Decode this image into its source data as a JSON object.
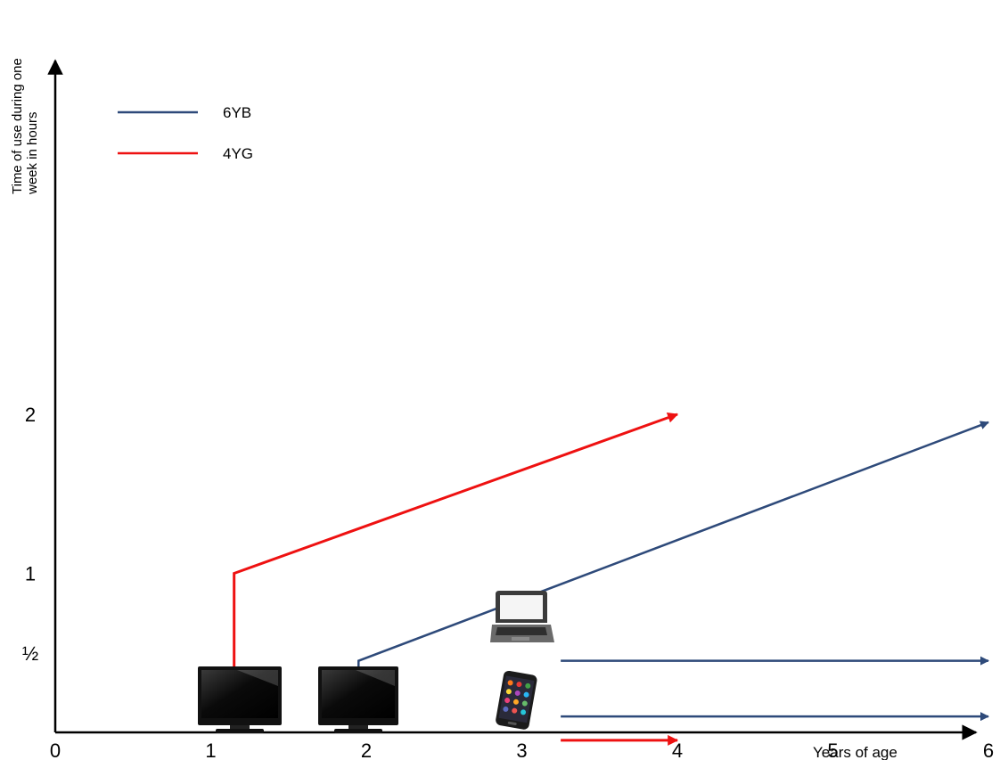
{
  "chart_data": {
    "type": "line",
    "title": "",
    "xlabel": "Years of age",
    "ylabel_lines": [
      "Time of use during one",
      "week in hours"
    ],
    "x_ticks": [
      "0",
      "1",
      "2",
      "3",
      "4",
      "5",
      "6"
    ],
    "y_ticks": [
      {
        "value": 0.5,
        "label": "½"
      },
      {
        "value": 1,
        "label": "1"
      },
      {
        "value": 2,
        "label": "2"
      }
    ],
    "xlim": [
      0,
      6
    ],
    "ylim": [
      0,
      3.8
    ],
    "grid": false,
    "legend_position": "top-left",
    "series": [
      {
        "name": "6YB",
        "color": "#2e4a7a",
        "device": "tv",
        "points": [
          [
            1.95,
            0.22
          ],
          [
            1.95,
            0.45
          ],
          [
            6.0,
            1.95
          ]
        ]
      },
      {
        "name": "6YB",
        "color": "#2e4a7a",
        "device": "laptop",
        "points": [
          [
            3.25,
            0.45
          ],
          [
            6.0,
            0.45
          ]
        ]
      },
      {
        "name": "6YB",
        "color": "#2e4a7a",
        "device": "smartphone",
        "points": [
          [
            3.25,
            0.1
          ],
          [
            6.0,
            0.1
          ]
        ]
      },
      {
        "name": "4YG",
        "color": "#ee1111",
        "device": "tv",
        "points": [
          [
            1.15,
            0.22
          ],
          [
            1.15,
            1.0
          ],
          [
            4.0,
            2.0
          ]
        ]
      },
      {
        "name": "4YG",
        "color": "#ee1111",
        "device": "smartphone",
        "points": [
          [
            3.25,
            -0.05
          ],
          [
            4.0,
            -0.05
          ]
        ]
      }
    ],
    "legend": [
      {
        "name": "6YB",
        "color": "#2e4a7a"
      },
      {
        "name": "4YG",
        "color": "#ee1111"
      }
    ]
  }
}
